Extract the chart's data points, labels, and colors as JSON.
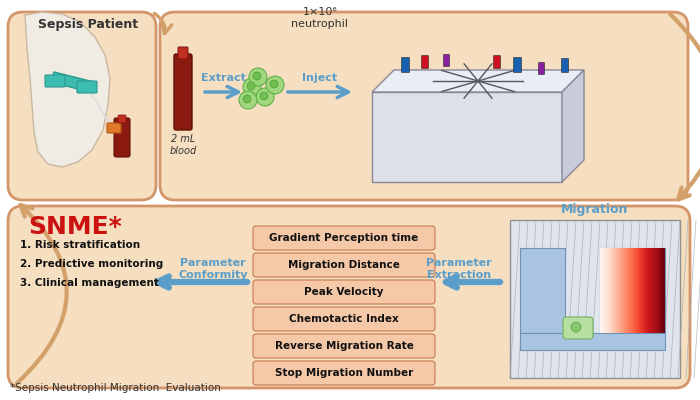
{
  "bg_color": "#ffffff",
  "box_fill": "#f5dfc0",
  "box_edge": "#d4956a",
  "param_box_fill": "#f5c8a8",
  "param_box_edge": "#c87848",
  "blue": "#5b9ec9",
  "orange_arrow": "#d4a06a",
  "snme_color": "#cc1111",
  "arm_skin": "#f0ebe3",
  "arm_edge": "#c8b8a0",
  "title_top": "Sepsis Patient",
  "title_migration": "Migration",
  "snme_text": "SNME*",
  "extract_text": "Extract",
  "inject_text": "Inject",
  "blood_label": "2 mL\nblood",
  "neutrophil_label": "1×10⁶\nneutrophil",
  "param_conformity": "Parameter\nConformity",
  "param_extraction": "Parameter\nExtraction",
  "parameters": [
    "Gradient Perception time",
    "Migration Distance",
    "Peak Velocity",
    "Chemotactic Index",
    "Reverse Migration Rate",
    "Stop Migration Number"
  ],
  "snme_items": [
    "1. Risk stratification",
    "2. Predictive monitoring",
    "3. Clinical management"
  ],
  "footnote": "*Sepsis Neutrophil Migration  Evaluation"
}
